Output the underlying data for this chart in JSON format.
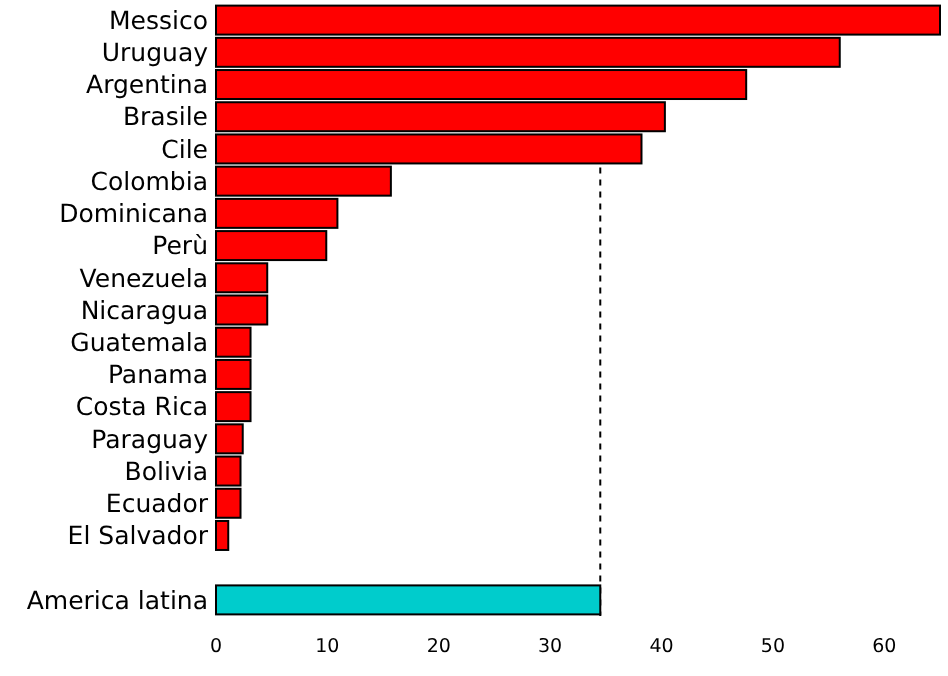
{
  "chart_data": {
    "type": "bar",
    "orientation": "horizontal",
    "categories": [
      "Messico",
      "Uruguay",
      "Argentina",
      "Brasile",
      "Cile",
      "Colombia",
      "Dominicana",
      "Perù",
      "Venezuela",
      "Nicaragua",
      "Guatemala",
      "Panama",
      "Costa Rica",
      "Paraguay",
      "Bolivia",
      "Ecuador",
      "El Salvador",
      null,
      "America latina"
    ],
    "values": [
      65,
      56,
      47.6,
      40.3,
      38.2,
      15.7,
      10.9,
      9.9,
      4.6,
      4.6,
      3.1,
      3.1,
      3.1,
      2.4,
      2.2,
      2.2,
      1.1,
      null,
      34.5
    ],
    "colors": [
      "#ff0000",
      "#ff0000",
      "#ff0000",
      "#ff0000",
      "#ff0000",
      "#ff0000",
      "#ff0000",
      "#ff0000",
      "#ff0000",
      "#ff0000",
      "#ff0000",
      "#ff0000",
      "#ff0000",
      "#ff0000",
      "#ff0000",
      "#ff0000",
      "#ff0000",
      null,
      "#00cccc"
    ],
    "xlim": [
      0,
      65
    ],
    "xticks": [
      0,
      10,
      20,
      30,
      40,
      50,
      60
    ],
    "ref_lines": [
      {
        "axis": "x",
        "value": 34.5,
        "line_style": "dashed",
        "color": "#000000"
      }
    ],
    "grid": false
  }
}
